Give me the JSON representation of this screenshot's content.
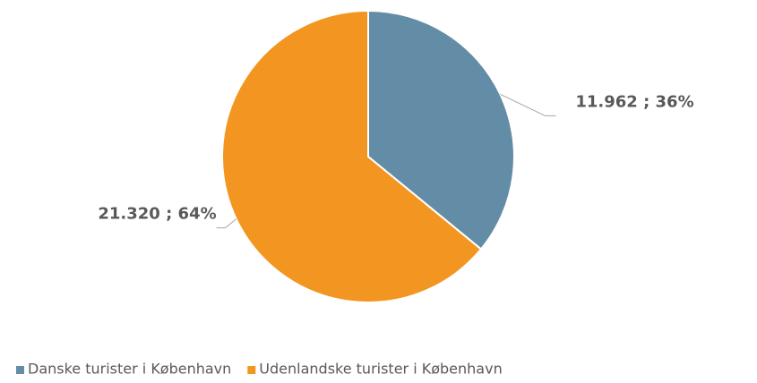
{
  "chart_data": {
    "type": "pie",
    "categories": [
      "Danske turister i København",
      "Udenlandske turister i København"
    ],
    "values": [
      11962,
      21320
    ],
    "value_labels": [
      "11.962 ; 36%",
      "21.320 ; 64%"
    ],
    "colors": [
      "#638ca6",
      "#f39621"
    ],
    "legend": "bottom"
  }
}
